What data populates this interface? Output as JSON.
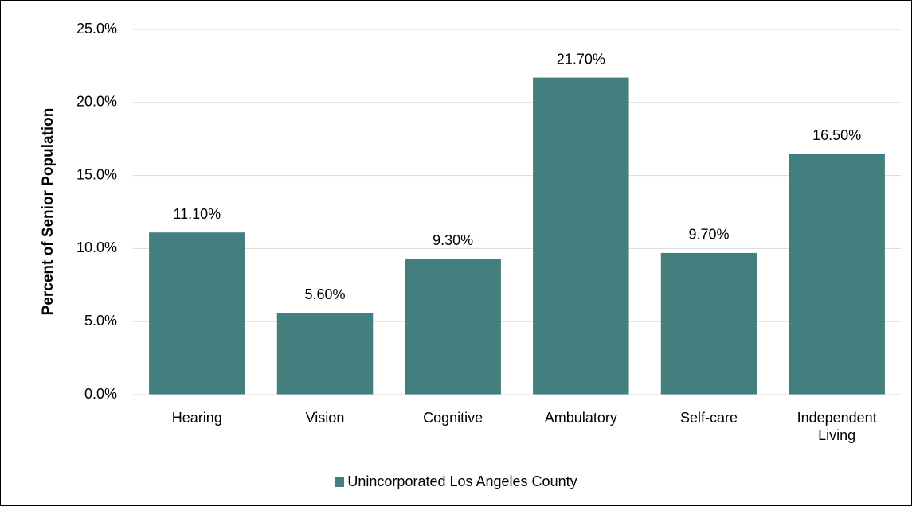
{
  "chart_data": {
    "type": "bar",
    "y_label": "Percent of Senior Population",
    "categories": [
      "Hearing",
      "Vision",
      "Cognitive",
      "Ambulatory",
      "Self-care",
      "Independent Living"
    ],
    "series": [
      {
        "name": "Unincorporated Los Angeles County",
        "color": "#437f7f",
        "values": [
          11.1,
          5.6,
          9.3,
          21.7,
          9.7,
          16.5
        ],
        "value_labels": [
          "11.10%",
          "5.60%",
          "9.30%",
          "21.70%",
          "9.70%",
          "16.50%"
        ]
      }
    ],
    "ylim": [
      0,
      25
    ],
    "yticks": [
      {
        "value": 0,
        "label": "0.0%"
      },
      {
        "value": 5,
        "label": "5.0%"
      },
      {
        "value": 10,
        "label": "10.0%"
      },
      {
        "value": 15,
        "label": "15.0%"
      },
      {
        "value": 20,
        "label": "20.0%"
      },
      {
        "value": 25,
        "label": "25.0%"
      }
    ],
    "grid": true,
    "legend": "bottom"
  }
}
